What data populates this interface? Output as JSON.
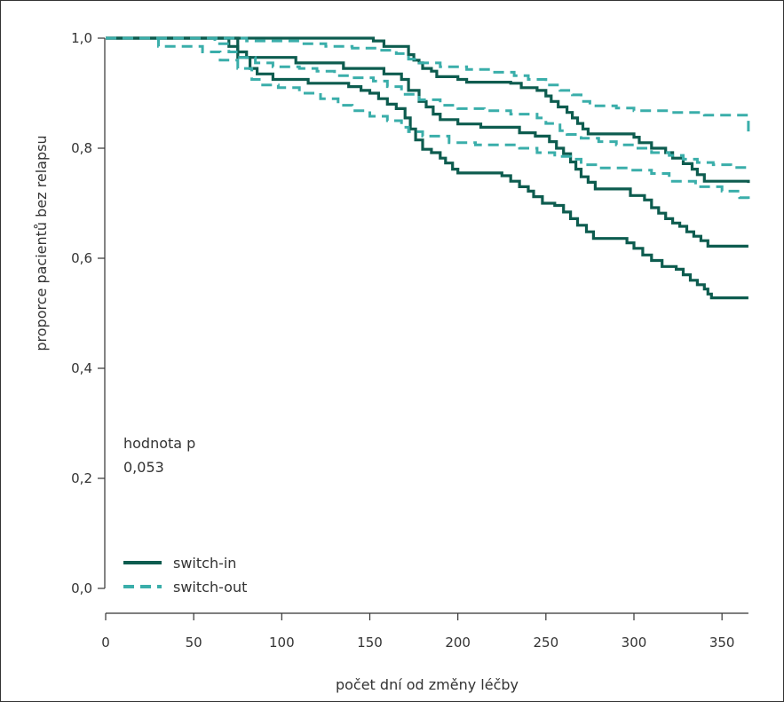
{
  "chart_data": {
    "type": "line",
    "xlabel": "počet dní od změny léčby",
    "ylabel": "proporce pacientů bez relapsu",
    "xlim": [
      0,
      365
    ],
    "ylim": [
      0.0,
      1.0
    ],
    "x_ticks": [
      0,
      50,
      100,
      150,
      200,
      250,
      300,
      350
    ],
    "x_tick_labels": [
      "0",
      "50",
      "100",
      "150",
      "200",
      "250",
      "300",
      "350"
    ],
    "y_ticks": [
      0.0,
      0.2,
      0.4,
      0.6,
      0.8,
      1.0
    ],
    "y_tick_labels": [
      "0,0",
      "0,2",
      "0,4",
      "0,6",
      "0,8",
      "1,0"
    ],
    "grid": false,
    "legend_position": "bottom-left",
    "annotation": {
      "line1": "hodnota p",
      "line2": "0,053"
    },
    "series": [
      {
        "name": "switch-in",
        "color": "#0d5c4f",
        "style": "solid",
        "curves": [
          [
            [
              0,
              1.0
            ],
            [
              152,
              1.0
            ],
            [
              152,
              0.995
            ],
            [
              158,
              0.995
            ],
            [
              158,
              0.985
            ],
            [
              167,
              0.985
            ],
            [
              172,
              0.97
            ],
            [
              175,
              0.96
            ],
            [
              178,
              0.955
            ],
            [
              180,
              0.945
            ],
            [
              185,
              0.94
            ],
            [
              188,
              0.93
            ],
            [
              200,
              0.925
            ],
            [
              205,
              0.92
            ],
            [
              230,
              0.918
            ],
            [
              236,
              0.91
            ],
            [
              245,
              0.905
            ],
            [
              250,
              0.895
            ],
            [
              253,
              0.885
            ],
            [
              257,
              0.875
            ],
            [
              262,
              0.865
            ],
            [
              265,
              0.855
            ],
            [
              268,
              0.845
            ],
            [
              271,
              0.835
            ],
            [
              274,
              0.826
            ],
            [
              298,
              0.826
            ],
            [
              300,
              0.82
            ],
            [
              303,
              0.81
            ],
            [
              310,
              0.8
            ],
            [
              318,
              0.792
            ],
            [
              322,
              0.782
            ],
            [
              328,
              0.772
            ],
            [
              333,
              0.762
            ],
            [
              336,
              0.752
            ],
            [
              340,
              0.74
            ],
            [
              365,
              0.737
            ]
          ],
          [
            [
              0,
              1.0
            ],
            [
              70,
              1.0
            ],
            [
              70,
              0.985
            ],
            [
              75,
              0.975
            ],
            [
              80,
              0.965
            ],
            [
              108,
              0.965
            ],
            [
              108,
              0.955
            ],
            [
              135,
              0.955
            ],
            [
              135,
              0.945
            ],
            [
              150,
              0.945
            ],
            [
              158,
              0.935
            ],
            [
              168,
              0.925
            ],
            [
              172,
              0.905
            ],
            [
              178,
              0.885
            ],
            [
              182,
              0.875
            ],
            [
              186,
              0.862
            ],
            [
              190,
              0.852
            ],
            [
              200,
              0.844
            ],
            [
              213,
              0.838
            ],
            [
              235,
              0.838
            ],
            [
              235,
              0.828
            ],
            [
              244,
              0.828
            ],
            [
              244,
              0.822
            ],
            [
              252,
              0.812
            ],
            [
              256,
              0.8
            ],
            [
              260,
              0.79
            ],
            [
              264,
              0.775
            ],
            [
              267,
              0.762
            ],
            [
              270,
              0.748
            ],
            [
              274,
              0.738
            ],
            [
              278,
              0.726
            ],
            [
              293,
              0.726
            ],
            [
              298,
              0.714
            ],
            [
              306,
              0.706
            ],
            [
              310,
              0.692
            ],
            [
              314,
              0.682
            ],
            [
              318,
              0.672
            ],
            [
              322,
              0.664
            ],
            [
              326,
              0.658
            ],
            [
              330,
              0.648
            ],
            [
              334,
              0.64
            ],
            [
              338,
              0.632
            ],
            [
              342,
              0.622
            ],
            [
              365,
              0.622
            ]
          ],
          [
            [
              0,
              1.0
            ],
            [
              70,
              1.0
            ],
            [
              75,
              0.965
            ],
            [
              82,
              0.945
            ],
            [
              86,
              0.935
            ],
            [
              95,
              0.925
            ],
            [
              115,
              0.925
            ],
            [
              115,
              0.918
            ],
            [
              138,
              0.912
            ],
            [
              145,
              0.905
            ],
            [
              150,
              0.9
            ],
            [
              155,
              0.89
            ],
            [
              160,
              0.88
            ],
            [
              165,
              0.872
            ],
            [
              170,
              0.855
            ],
            [
              173,
              0.835
            ],
            [
              176,
              0.815
            ],
            [
              180,
              0.798
            ],
            [
              185,
              0.792
            ],
            [
              190,
              0.782
            ],
            [
              193,
              0.773
            ],
            [
              197,
              0.762
            ],
            [
              200,
              0.755
            ],
            [
              220,
              0.755
            ],
            [
              225,
              0.75
            ],
            [
              230,
              0.74
            ],
            [
              235,
              0.73
            ],
            [
              240,
              0.722
            ],
            [
              243,
              0.712
            ],
            [
              248,
              0.7
            ],
            [
              255,
              0.696
            ],
            [
              260,
              0.684
            ],
            [
              264,
              0.672
            ],
            [
              268,
              0.66
            ],
            [
              273,
              0.648
            ],
            [
              277,
              0.636
            ],
            [
              291,
              0.636
            ],
            [
              296,
              0.628
            ],
            [
              300,
              0.618
            ],
            [
              305,
              0.606
            ],
            [
              310,
              0.596
            ],
            [
              316,
              0.585
            ],
            [
              324,
              0.58
            ],
            [
              328,
              0.57
            ],
            [
              332,
              0.56
            ],
            [
              336,
              0.552
            ],
            [
              340,
              0.544
            ],
            [
              342,
              0.535
            ],
            [
              344,
              0.528
            ],
            [
              365,
              0.528
            ]
          ]
        ]
      },
      {
        "name": "switch-out",
        "color": "#3aaeaa",
        "style": "dashed",
        "curves": [
          [
            [
              0,
              1.0
            ],
            [
              75,
              1.0
            ],
            [
              80,
              0.995
            ],
            [
              100,
              0.995
            ],
            [
              110,
              0.99
            ],
            [
              125,
              0.985
            ],
            [
              140,
              0.982
            ],
            [
              155,
              0.978
            ],
            [
              165,
              0.972
            ],
            [
              172,
              0.962
            ],
            [
              178,
              0.955
            ],
            [
              190,
              0.948
            ],
            [
              205,
              0.943
            ],
            [
              220,
              0.938
            ],
            [
              232,
              0.932
            ],
            [
              240,
              0.925
            ],
            [
              250,
              0.915
            ],
            [
              258,
              0.905
            ],
            [
              265,
              0.897
            ],
            [
              270,
              0.885
            ],
            [
              275,
              0.877
            ],
            [
              290,
              0.873
            ],
            [
              300,
              0.868
            ],
            [
              320,
              0.865
            ],
            [
              340,
              0.86
            ],
            [
              365,
              0.83
            ]
          ],
          [
            [
              0,
              1.0
            ],
            [
              55,
              1.0
            ],
            [
              62,
              0.99
            ],
            [
              70,
              0.975
            ],
            [
              75,
              0.965
            ],
            [
              85,
              0.955
            ],
            [
              95,
              0.948
            ],
            [
              110,
              0.945
            ],
            [
              120,
              0.94
            ],
            [
              130,
              0.932
            ],
            [
              140,
              0.928
            ],
            [
              152,
              0.922
            ],
            [
              160,
              0.912
            ],
            [
              168,
              0.898
            ],
            [
              178,
              0.888
            ],
            [
              190,
              0.878
            ],
            [
              200,
              0.872
            ],
            [
              215,
              0.868
            ],
            [
              230,
              0.862
            ],
            [
              245,
              0.855
            ],
            [
              250,
              0.845
            ],
            [
              258,
              0.832
            ],
            [
              262,
              0.825
            ],
            [
              270,
              0.818
            ],
            [
              280,
              0.812
            ],
            [
              290,
              0.806
            ],
            [
              300,
              0.8
            ],
            [
              310,
              0.792
            ],
            [
              320,
              0.787
            ],
            [
              328,
              0.78
            ],
            [
              336,
              0.774
            ],
            [
              345,
              0.77
            ],
            [
              355,
              0.765
            ],
            [
              365,
              0.763
            ]
          ],
          [
            [
              0,
              1.0
            ],
            [
              28,
              1.0
            ],
            [
              30,
              0.985
            ],
            [
              50,
              0.985
            ],
            [
              55,
              0.975
            ],
            [
              65,
              0.96
            ],
            [
              75,
              0.945
            ],
            [
              83,
              0.925
            ],
            [
              88,
              0.915
            ],
            [
              98,
              0.91
            ],
            [
              110,
              0.9
            ],
            [
              122,
              0.89
            ],
            [
              132,
              0.878
            ],
            [
              140,
              0.868
            ],
            [
              150,
              0.858
            ],
            [
              160,
              0.85
            ],
            [
              168,
              0.838
            ],
            [
              172,
              0.83
            ],
            [
              180,
              0.822
            ],
            [
              195,
              0.81
            ],
            [
              210,
              0.806
            ],
            [
              235,
              0.8
            ],
            [
              245,
              0.792
            ],
            [
              255,
              0.785
            ],
            [
              264,
              0.78
            ],
            [
              270,
              0.77
            ],
            [
              280,
              0.764
            ],
            [
              298,
              0.76
            ],
            [
              310,
              0.754
            ],
            [
              320,
              0.74
            ],
            [
              335,
              0.73
            ],
            [
              350,
              0.722
            ],
            [
              360,
              0.71
            ],
            [
              365,
              0.7
            ]
          ]
        ]
      }
    ]
  }
}
